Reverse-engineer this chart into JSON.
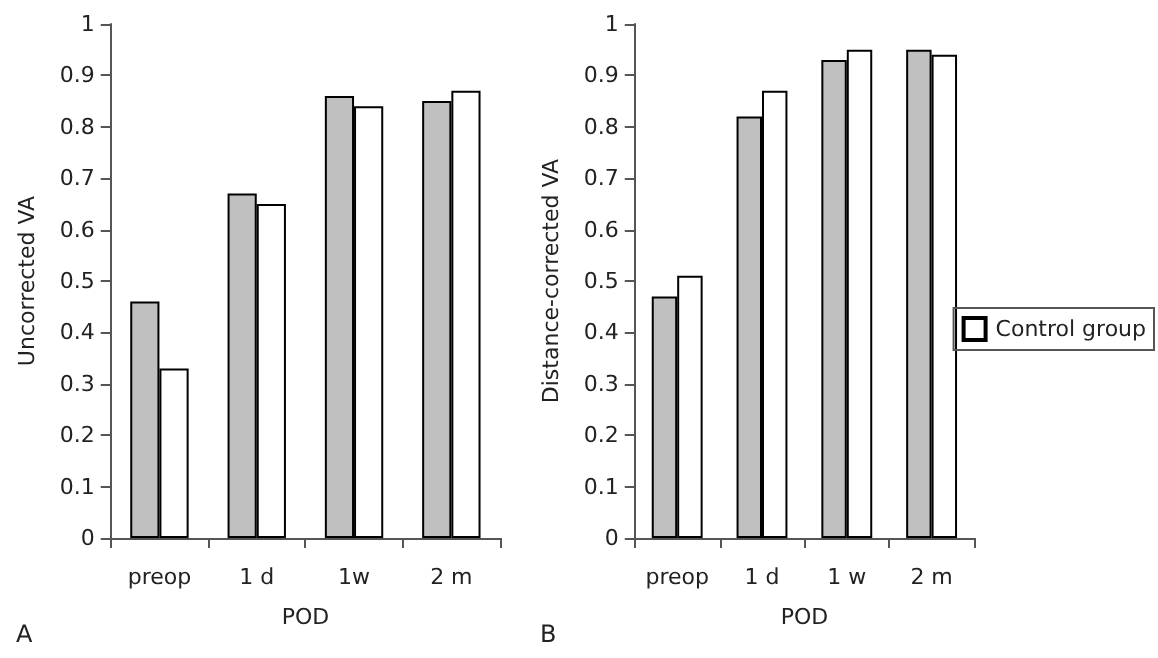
{
  "chart_data": [
    {
      "type": "bar",
      "xlabel": "POD",
      "ylabel": "Uncorrected VA",
      "categories": [
        "preop",
        "1 d",
        "1w",
        "2 m"
      ],
      "series": [
        {
          "color": "#c0c0c0",
          "values": [
            0.46,
            0.67,
            0.86,
            0.85
          ]
        },
        {
          "color": "#ffffff",
          "values": [
            0.33,
            0.65,
            0.84,
            0.87
          ]
        }
      ],
      "ylim": [
        0,
        1
      ],
      "yticks": [
        0,
        0.1,
        0.2,
        0.3,
        0.4,
        0.5,
        0.6,
        0.7,
        0.8,
        0.9,
        1
      ],
      "grid": false,
      "legend": false,
      "annotations": [
        "A"
      ]
    },
    {
      "type": "bar",
      "xlabel": "POD",
      "ylabel": "Distance-corrected VA",
      "categories": [
        "preop",
        "1 d",
        "1 w",
        "2 m"
      ],
      "series": [
        {
          "color": "#c0c0c0",
          "values": [
            0.47,
            0.82,
            0.93,
            0.95
          ]
        },
        {
          "name": "Control group",
          "color": "#ffffff",
          "values": [
            0.51,
            0.87,
            0.95,
            0.94
          ]
        }
      ],
      "ylim": [
        0,
        1
      ],
      "yticks": [
        0,
        0.1,
        0.2,
        0.3,
        0.4,
        0.5,
        0.6,
        0.7,
        0.8,
        0.9,
        1
      ],
      "grid": false,
      "legend": "right",
      "annotations": [
        "B"
      ]
    }
  ]
}
